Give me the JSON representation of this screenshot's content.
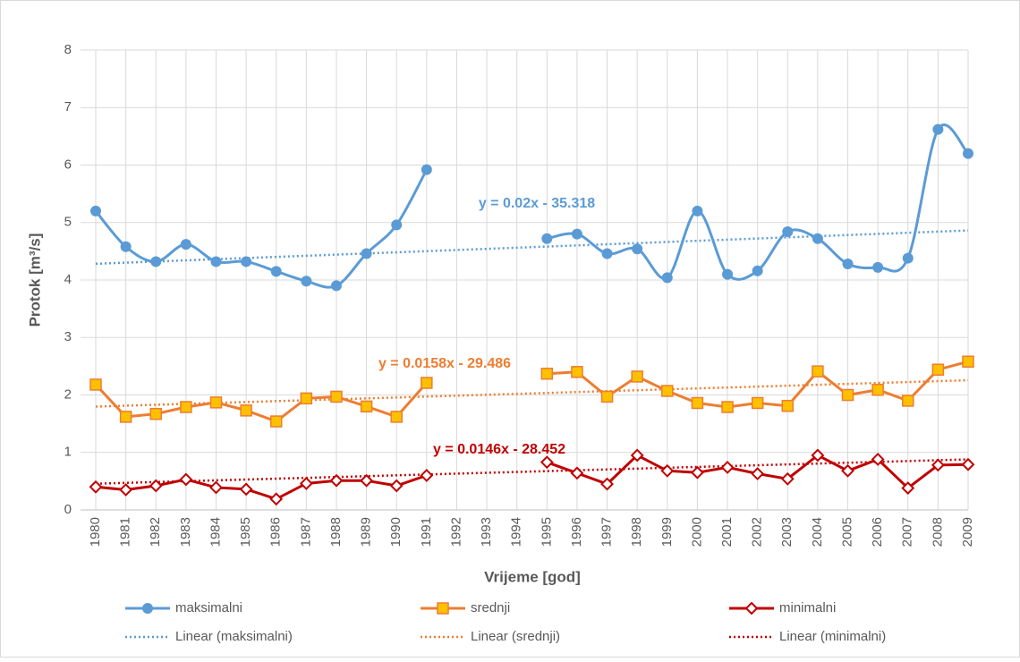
{
  "chart_data": {
    "type": "line",
    "categories": [
      "1980",
      "1981",
      "1982",
      "1983",
      "1984",
      "1985",
      "1986",
      "1987",
      "1988",
      "1989",
      "1990",
      "1991",
      "1992",
      "1993",
      "1994",
      "1995",
      "1996",
      "1997",
      "1998",
      "1999",
      "2000",
      "2001",
      "2002",
      "2003",
      "2004",
      "2005",
      "2006",
      "2007",
      "2008",
      "2009"
    ],
    "series": [
      {
        "name": "maksimalni",
        "color": "#5b9bd5",
        "marker": "circle",
        "smooth": true,
        "values": [
          5.2,
          4.58,
          4.32,
          4.62,
          4.32,
          4.32,
          4.15,
          3.98,
          3.9,
          4.46,
          4.96,
          5.92,
          null,
          null,
          null,
          4.72,
          4.8,
          4.46,
          4.54,
          4.04,
          5.2,
          4.1,
          4.16,
          4.84,
          4.72,
          4.28,
          4.22,
          4.38,
          6.62,
          6.2
        ]
      },
      {
        "name": "srednji",
        "color": "#ed7d31",
        "marker_fill": "#ffc000",
        "marker": "square",
        "smooth": false,
        "values": [
          2.18,
          1.62,
          1.67,
          1.79,
          1.87,
          1.73,
          1.54,
          1.94,
          1.97,
          1.8,
          1.62,
          2.21,
          null,
          null,
          null,
          2.37,
          2.4,
          1.97,
          2.32,
          2.07,
          1.86,
          1.79,
          1.86,
          1.81,
          2.41,
          2.0,
          2.09,
          1.9,
          2.44,
          2.58
        ]
      },
      {
        "name": "minimalni",
        "color": "#c00000",
        "marker_fill": "#ffffff",
        "marker": "diamond",
        "smooth": false,
        "values": [
          0.4,
          0.35,
          0.42,
          0.53,
          0.39,
          0.36,
          0.19,
          0.46,
          0.51,
          0.51,
          0.42,
          0.6,
          null,
          null,
          null,
          0.83,
          0.64,
          0.45,
          0.95,
          0.68,
          0.65,
          0.74,
          0.63,
          0.54,
          0.95,
          0.68,
          0.88,
          0.38,
          0.78,
          0.79
        ]
      }
    ],
    "trendlines": [
      {
        "name": "Linear (maksimalni)",
        "color": "#5b9bd5",
        "equation": "y = 0.02x - 35.318",
        "slope": 0.02,
        "intercept": -35.318
      },
      {
        "name": "Linear (srednji)",
        "color": "#ed7d31",
        "equation": "y = 0.0158x - 29.486",
        "slope": 0.0158,
        "intercept": -29.486
      },
      {
        "name": "Linear (minimalni)",
        "color": "#c00000",
        "equation": "y = 0.0146x - 28.452",
        "slope": 0.0146,
        "intercept": -28.452
      }
    ],
    "x_label": "Vrijeme [god]",
    "y_label": "Protok [m³/s]",
    "ylim": [
      0,
      8
    ],
    "yticks": [
      0,
      1,
      2,
      3,
      4,
      5,
      6,
      7,
      8
    ],
    "grid": true,
    "legend": "bottom"
  }
}
